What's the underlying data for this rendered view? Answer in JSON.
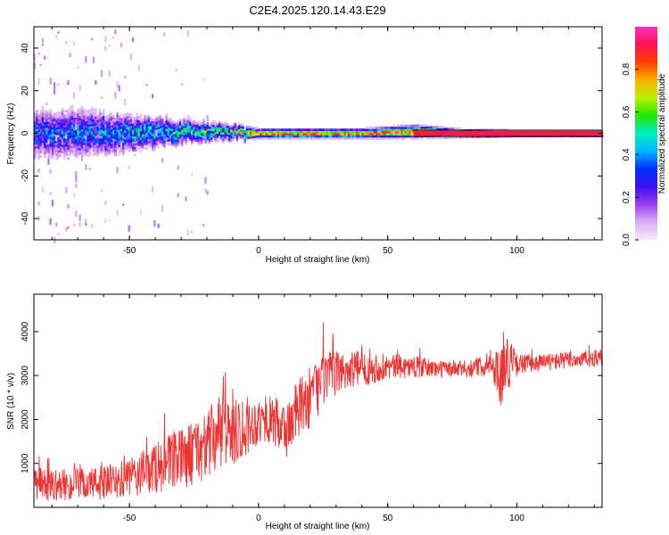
{
  "title": "C2E4.2025.120.14.43.E29",
  "chart_data": [
    {
      "type": "heatmap",
      "title": "C2E4.2025.120.14.43.E29",
      "xlabel": "Height of straight line (km)",
      "ylabel": "Frequency (Hz)",
      "xlim": [
        -87,
        133
      ],
      "ylim": [
        -50,
        50
      ],
      "xticks": [
        -50,
        0,
        50,
        100
      ],
      "yticks": [
        -40,
        -20,
        0,
        20,
        40
      ],
      "xtick_labels": [
        "-50",
        "0",
        "50",
        "100"
      ],
      "ytick_labels": [
        "-40",
        "-20",
        "0",
        "20",
        "40"
      ],
      "colorbar": {
        "label": "Normalized spectral amplitude",
        "range": [
          0,
          1
        ],
        "ticks": [
          0.0,
          0.2,
          0.4,
          0.6,
          0.8
        ],
        "tick_labels": [
          "0.0",
          "0.2",
          "0.4",
          "0.6",
          "0.8"
        ],
        "colormap": [
          "#f6ecfb",
          "#d7b0f0",
          "#9d3ef0",
          "#3a10f5",
          "#0030ff",
          "#00b8ff",
          "#00f0c0",
          "#20e800",
          "#b8f000",
          "#ffb000",
          "#ff4000",
          "#ff1050",
          "#ff30c8"
        ]
      },
      "band": {
        "description_points_x": [
          -87,
          -70,
          -50,
          -30,
          -10,
          0,
          20,
          40,
          60,
          80,
          100,
          133
        ],
        "center_hz": [
          0,
          0,
          0,
          1,
          0.5,
          0,
          0,
          0,
          1,
          0,
          0,
          0
        ],
        "halfwidth_hz": [
          8,
          8,
          6,
          4,
          2.5,
          1.5,
          1.5,
          1.5,
          2,
          1.2,
          1,
          1
        ],
        "peak_amplitude": [
          0.3,
          0.35,
          0.4,
          0.45,
          0.55,
          0.8,
          0.82,
          0.85,
          0.88,
          0.9,
          0.92,
          0.92
        ]
      },
      "grid": false,
      "legend": "none"
    },
    {
      "type": "line",
      "xlabel": "Height of straight line (km)",
      "ylabel": "SNR (10 * v/v)",
      "xlim": [
        -87,
        133
      ],
      "ylim": [
        0,
        4850
      ],
      "xticks": [
        -50,
        0,
        50,
        100
      ],
      "yticks": [
        1000,
        2000,
        3000,
        4000
      ],
      "xtick_labels": [
        "-50",
        "0",
        "50",
        "100"
      ],
      "ytick_labels": [
        "1000",
        "2000",
        "3000",
        "4000"
      ],
      "series_color": "#ee3333",
      "series": [
        {
          "x": [
            -87,
            -80,
            -70,
            -60,
            -50,
            -40,
            -30,
            -20,
            -15,
            -10,
            -5,
            0,
            5,
            10,
            15,
            20,
            25,
            30,
            35,
            40,
            50,
            60,
            70,
            80,
            90,
            94,
            96,
            100,
            110,
            120,
            133
          ],
          "y_mean": [
            550,
            500,
            520,
            550,
            650,
            900,
            1100,
            1400,
            1700,
            1800,
            1850,
            1950,
            2000,
            1700,
            2200,
            2500,
            2900,
            3050,
            3150,
            3150,
            3200,
            3200,
            3150,
            3150,
            3250,
            3000,
            3300,
            3250,
            3300,
            3350,
            3400
          ],
          "y_spread": [
            400,
            350,
            380,
            400,
            450,
            600,
            700,
            800,
            900,
            900,
            700,
            500,
            550,
            700,
            700,
            700,
            650,
            500,
            450,
            400,
            300,
            250,
            200,
            200,
            250,
            700,
            700,
            250,
            200,
            200,
            200
          ]
        }
      ],
      "grid": false,
      "legend": "none"
    }
  ]
}
